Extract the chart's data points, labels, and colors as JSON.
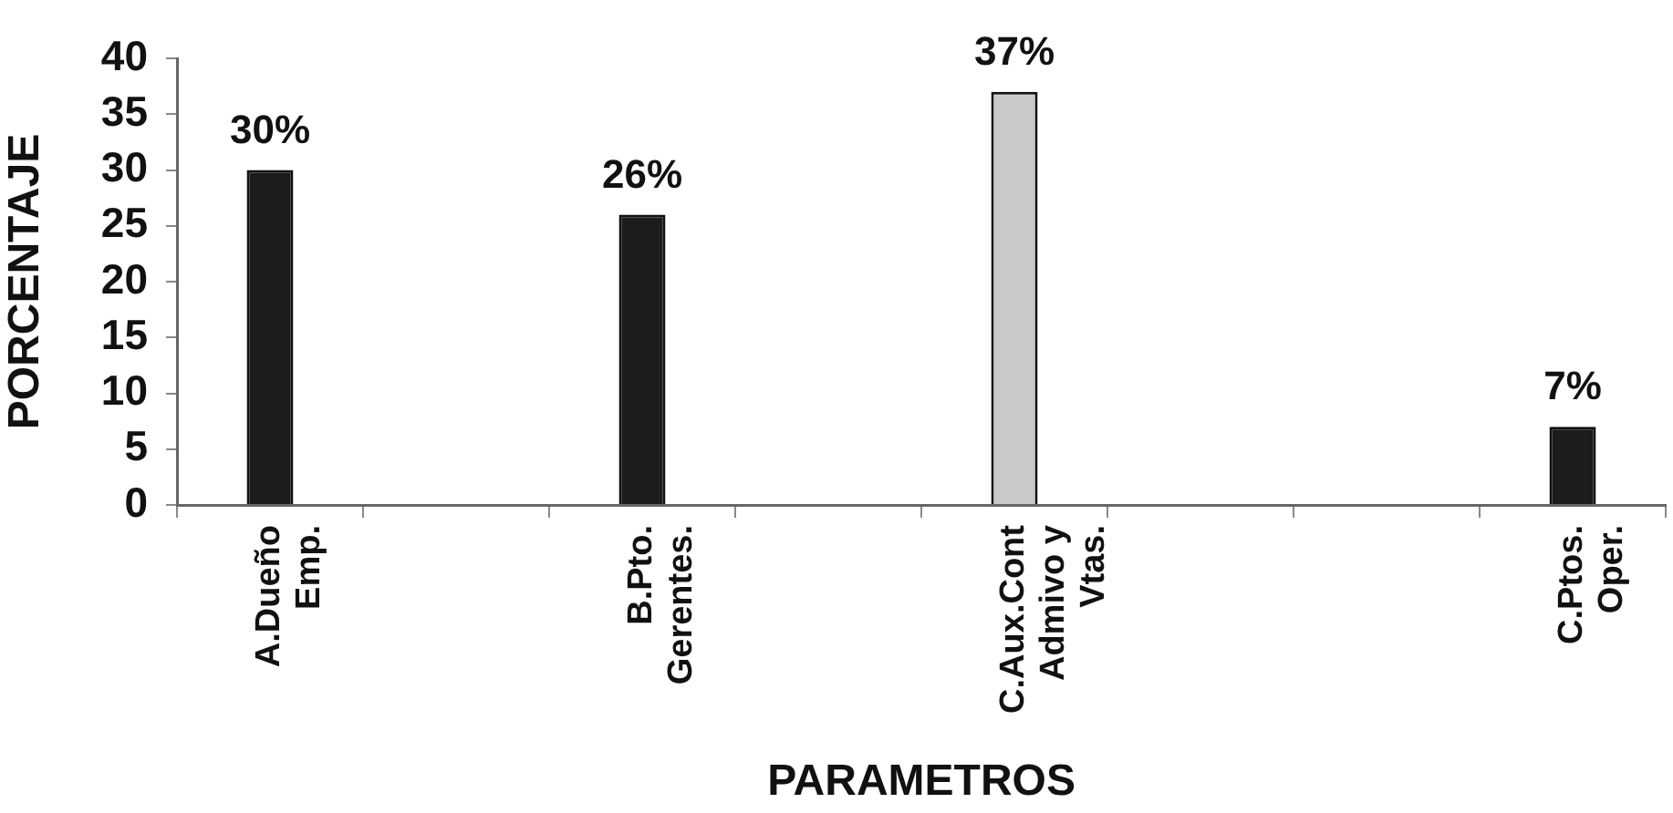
{
  "chart_data": {
    "type": "bar",
    "categories": [
      "A.Dueño\nEmp.",
      null,
      "B.Pto.\nGerentes.",
      null,
      "C.Aux.Cont\nAdmivo y\nVtas.",
      null,
      null,
      "C.Ptos.\nOper."
    ],
    "values": [
      30,
      null,
      26,
      null,
      37,
      null,
      null,
      7
    ],
    "colors": [
      "#1c1c1c",
      "#1c1c1c",
      "#1c1c1c",
      "#1c1c1c",
      "#c9c9c9",
      "#1c1c1c",
      "#1c1c1c",
      "#1c1c1c"
    ],
    "value_labels": [
      "30%",
      null,
      "26%",
      null,
      "37%",
      null,
      null,
      "7%"
    ],
    "ylabel": "PORCENTAJE",
    "xlabel": "PARAMETROS",
    "ylim": [
      0,
      40
    ],
    "yticks": [
      0,
      5,
      10,
      15,
      20,
      25,
      30,
      35,
      40
    ]
  }
}
